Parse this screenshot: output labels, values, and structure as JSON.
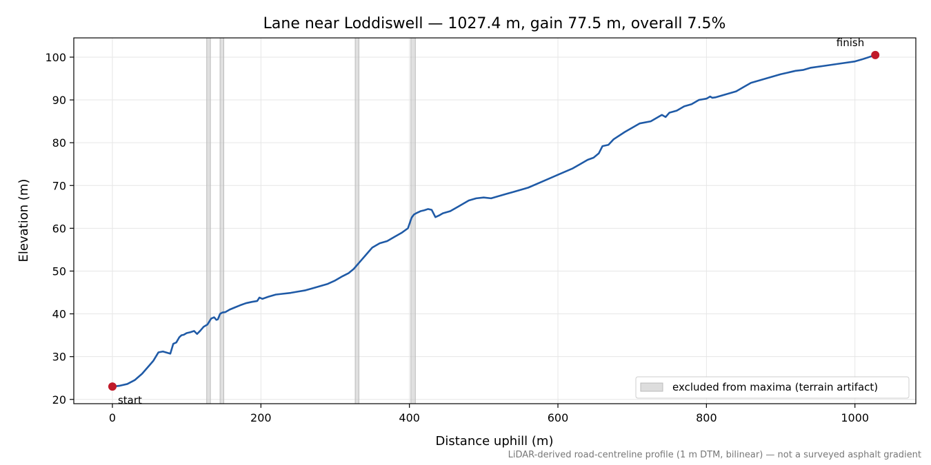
{
  "chart_data": {
    "type": "line",
    "title": "Lane near Loddiswell — 1027.4 m, gain 77.5 m, overall 7.5%",
    "xlabel": "Distance uphill (m)",
    "ylabel": "Elevation (m)",
    "xlim": [
      -52,
      1082
    ],
    "ylim": [
      19,
      104.5
    ],
    "xticks": [
      0,
      200,
      400,
      600,
      800,
      1000
    ],
    "yticks": [
      20,
      30,
      40,
      50,
      60,
      70,
      80,
      90,
      100
    ],
    "grid": true,
    "legend_position": "lower-right",
    "note": "LiDAR-derived road-centreline profile (1 m DTM, bilinear) — not a surveyed asphalt gradient",
    "series": [
      {
        "color": "#1f5aa6",
        "x": [
          0,
          10,
          20,
          30,
          40,
          50,
          55,
          62,
          68,
          72,
          78,
          82,
          86,
          90,
          93,
          96,
          100,
          105,
          110,
          114,
          118,
          123,
          128,
          133,
          137,
          140,
          142,
          145,
          148,
          152,
          158,
          165,
          172,
          180,
          188,
          195,
          198,
          202,
          210,
          220,
          230,
          240,
          250,
          260,
          270,
          280,
          290,
          300,
          310,
          318,
          325,
          330,
          335,
          340,
          345,
          350,
          355,
          360,
          370,
          380,
          390,
          398,
          403,
          406,
          410,
          415,
          420,
          425,
          430,
          435,
          440,
          445,
          455,
          465,
          475,
          480,
          490,
          500,
          510,
          520,
          530,
          540,
          560,
          580,
          600,
          620,
          630,
          640,
          648,
          655,
          660,
          668,
          675,
          690,
          710,
          725,
          735,
          740,
          745,
          750,
          760,
          770,
          780,
          790,
          800,
          805,
          808,
          812,
          820,
          840,
          850,
          860,
          880,
          900,
          920,
          930,
          940,
          960,
          980,
          1000,
          1010,
          1027.4
        ],
        "y": [
          23.0,
          23.2,
          23.6,
          24.5,
          26.0,
          28.0,
          29.0,
          31.0,
          31.2,
          31.0,
          30.7,
          33.0,
          33.3,
          34.5,
          35.0,
          35.1,
          35.5,
          35.7,
          36.0,
          35.3,
          36.0,
          37.0,
          37.5,
          38.9,
          39.2,
          38.6,
          38.7,
          40.0,
          40.3,
          40.4,
          41.0,
          41.5,
          42.0,
          42.5,
          42.8,
          43.0,
          43.8,
          43.5,
          44.0,
          44.5,
          44.7,
          44.9,
          45.2,
          45.5,
          46.0,
          46.5,
          47.0,
          47.8,
          48.8,
          49.5,
          50.5,
          51.5,
          52.5,
          53.5,
          54.5,
          55.5,
          56.0,
          56.5,
          57.0,
          58.0,
          59.0,
          60.0,
          62.5,
          63.2,
          63.6,
          64.0,
          64.2,
          64.5,
          64.3,
          62.6,
          63.0,
          63.5,
          64.0,
          65.0,
          66.0,
          66.5,
          67.0,
          67.2,
          67.0,
          67.5,
          68.0,
          68.5,
          69.5,
          71.0,
          72.5,
          74.0,
          75.0,
          76.0,
          76.5,
          77.5,
          79.2,
          79.5,
          80.8,
          82.5,
          84.5,
          85.0,
          86.0,
          86.5,
          86.0,
          87.0,
          87.5,
          88.5,
          89.0,
          90.0,
          90.3,
          90.8,
          90.5,
          90.6,
          91.0,
          92.0,
          93.0,
          94.0,
          95.0,
          96.0,
          96.8,
          97.0,
          97.5,
          98.0,
          98.5,
          99.0,
          99.5,
          100.5
        ]
      }
    ],
    "excluded_bands": [
      {
        "x0": 127,
        "x1": 132
      },
      {
        "x0": 145,
        "x1": 150
      },
      {
        "x0": 327,
        "x1": 332
      },
      {
        "x0": 402,
        "x1": 408
      }
    ],
    "legend": [
      {
        "label": "excluded from maxima (terrain artifact)",
        "color": "#dddddd"
      }
    ],
    "annotations": [
      {
        "label": "start",
        "x": 0,
        "y": 23.0,
        "color": "#c01a2a"
      },
      {
        "label": "finish",
        "x": 1027.4,
        "y": 100.5,
        "color": "#c01a2a"
      }
    ]
  }
}
